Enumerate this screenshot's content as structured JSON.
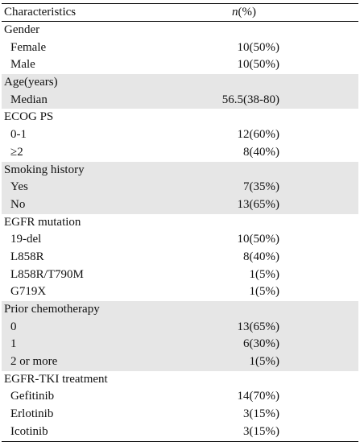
{
  "header": {
    "characteristic": "Characteristics",
    "n": "n",
    "pct": "(%)"
  },
  "rows": [
    {
      "label": "Gender",
      "value": "",
      "sub": false,
      "shaded": false
    },
    {
      "label": "Female",
      "value": "10(50%)",
      "sub": true,
      "shaded": false
    },
    {
      "label": "Male",
      "value": "10(50%)",
      "sub": true,
      "shaded": false
    },
    {
      "label": "Age(years)",
      "value": "",
      "sub": false,
      "shaded": true
    },
    {
      "label": "Median",
      "value": "56.5(38-80)",
      "sub": true,
      "shaded": true
    },
    {
      "label": "ECOG PS",
      "value": "",
      "sub": false,
      "shaded": false
    },
    {
      "label": "0-1",
      "value": "12(60%)",
      "sub": true,
      "shaded": false
    },
    {
      "label": "≥2",
      "value": "8(40%)",
      "sub": true,
      "shaded": false
    },
    {
      "label": "Smoking history",
      "value": "",
      "sub": false,
      "shaded": true
    },
    {
      "label": "Yes",
      "value": "7(35%)",
      "sub": true,
      "shaded": true
    },
    {
      "label": "No",
      "value": "13(65%)",
      "sub": true,
      "shaded": true
    },
    {
      "label": "EGFR mutation",
      "value": "",
      "sub": false,
      "shaded": false
    },
    {
      "label": "19-del",
      "value": "10(50%)",
      "sub": true,
      "shaded": false
    },
    {
      "label": "L858R",
      "value": "8(40%)",
      "sub": true,
      "shaded": false
    },
    {
      "label": "L858R/T790M",
      "value": "1(5%)",
      "sub": true,
      "shaded": false
    },
    {
      "label": "G719X",
      "value": "1(5%)",
      "sub": true,
      "shaded": false
    },
    {
      "label": "Prior chemotherapy",
      "value": "",
      "sub": false,
      "shaded": true
    },
    {
      "label": "0",
      "value": "13(65%)",
      "sub": true,
      "shaded": true
    },
    {
      "label": "1",
      "value": "6(30%)",
      "sub": true,
      "shaded": true
    },
    {
      "label": "2 or more",
      "value": "1(5%)",
      "sub": true,
      "shaded": true
    },
    {
      "label": "EGFR-TKI treatment",
      "value": "",
      "sub": false,
      "shaded": false
    },
    {
      "label": "Gefitinib",
      "value": "14(70%)",
      "sub": true,
      "shaded": false
    },
    {
      "label": "Erlotinib",
      "value": "3(15%)",
      "sub": true,
      "shaded": false
    },
    {
      "label": "Icotinib",
      "value": "3(15%)",
      "sub": true,
      "shaded": false
    }
  ]
}
